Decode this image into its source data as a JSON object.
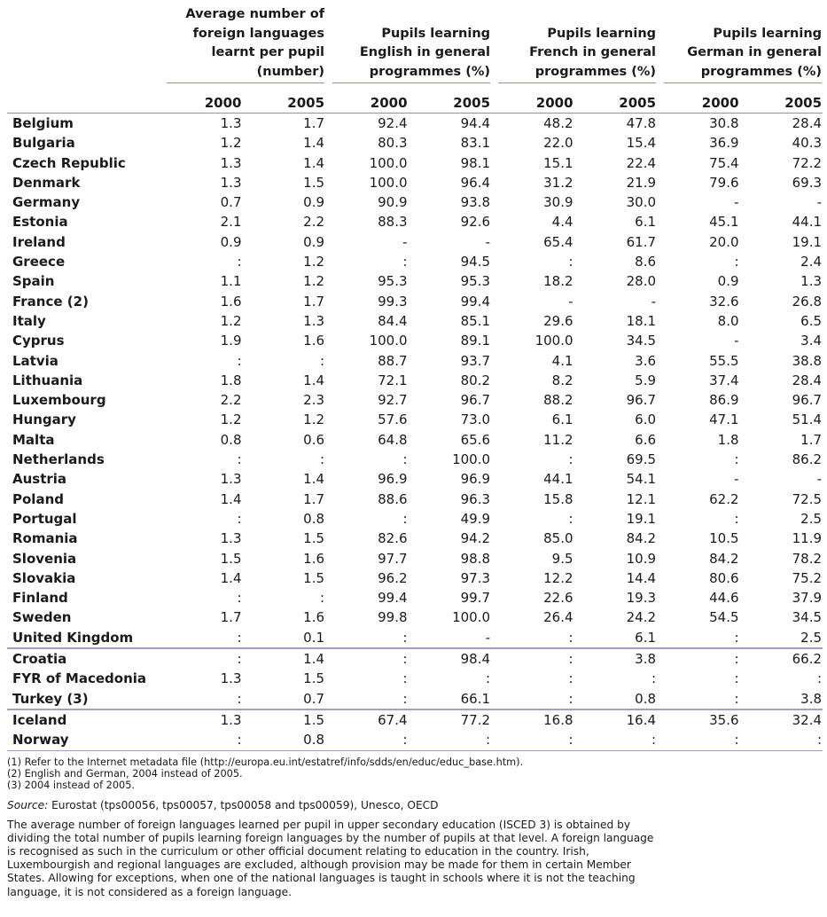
{
  "header": {
    "groups": [
      {
        "lines": [
          "Average number of",
          "foreign languages",
          "learnt per pupil",
          "(number)"
        ]
      },
      {
        "lines": [
          "Pupils learning",
          "English in general",
          "programmes (%)"
        ]
      },
      {
        "lines": [
          "Pupils learning",
          "French in  general",
          "programmes (%)"
        ]
      },
      {
        "lines": [
          "Pupils learning",
          "German in general",
          "programmes (%)"
        ]
      }
    ],
    "years": [
      "2000",
      "2005",
      "2000",
      "2005",
      "2000",
      "2005",
      "2000",
      "2005"
    ]
  },
  "rows": [
    {
      "country": "Belgium",
      "values": [
        "1.3",
        "1.7",
        "92.4",
        "94.4",
        "48.2",
        "47.8",
        "30.8",
        "28.4"
      ]
    },
    {
      "country": "Bulgaria",
      "values": [
        "1.2",
        "1.4",
        "80.3",
        "83.1",
        "22.0",
        "15.4",
        "36.9",
        "40.3"
      ]
    },
    {
      "country": "Czech Republic",
      "values": [
        "1.3",
        "1.4",
        "100.0",
        "98.1",
        "15.1",
        "22.4",
        "75.4",
        "72.2"
      ]
    },
    {
      "country": "Denmark",
      "values": [
        "1.3",
        "1.5",
        "100.0",
        "96.4",
        "31.2",
        "21.9",
        "79.6",
        "69.3"
      ]
    },
    {
      "country": "Germany",
      "values": [
        "0.7",
        "0.9",
        "90.9",
        "93.8",
        "30.9",
        "30.0",
        "-",
        "-"
      ]
    },
    {
      "country": "Estonia",
      "values": [
        "2.1",
        "2.2",
        "88.3",
        "92.6",
        "4.4",
        "6.1",
        "45.1",
        "44.1"
      ]
    },
    {
      "country": "Ireland",
      "values": [
        "0.9",
        "0.9",
        "-",
        "-",
        "65.4",
        "61.7",
        "20.0",
        "19.1"
      ]
    },
    {
      "country": "Greece",
      "values": [
        ":",
        "1.2",
        ":",
        "94.5",
        ":",
        "8.6",
        ":",
        "2.4"
      ]
    },
    {
      "country": "Spain",
      "values": [
        "1.1",
        "1.2",
        "95.3",
        "95.3",
        "18.2",
        "28.0",
        "0.9",
        "1.3"
      ]
    },
    {
      "country": "France (2)",
      "values": [
        "1.6",
        "1.7",
        "99.3",
        "99.4",
        "-",
        "-",
        "32.6",
        "26.8"
      ]
    },
    {
      "country": "Italy",
      "values": [
        "1.2",
        "1.3",
        "84.4",
        "85.1",
        "29.6",
        "18.1",
        "8.0",
        "6.5"
      ]
    },
    {
      "country": "Cyprus",
      "values": [
        "1.9",
        "1.6",
        "100.0",
        "89.1",
        "100.0",
        "34.5",
        "-",
        "3.4"
      ]
    },
    {
      "country": "Latvia",
      "values": [
        ":",
        ":",
        "88.7",
        "93.7",
        "4.1",
        "3.6",
        "55.5",
        "38.8"
      ]
    },
    {
      "country": "Lithuania",
      "values": [
        "1.8",
        "1.4",
        "72.1",
        "80.2",
        "8.2",
        "5.9",
        "37.4",
        "28.4"
      ]
    },
    {
      "country": "Luxembourg",
      "values": [
        "2.2",
        "2.3",
        "92.7",
        "96.7",
        "88.2",
        "96.7",
        "86.9",
        "96.7"
      ]
    },
    {
      "country": "Hungary",
      "values": [
        "1.2",
        "1.2",
        "57.6",
        "73.0",
        "6.1",
        "6.0",
        "47.1",
        "51.4"
      ]
    },
    {
      "country": "Malta",
      "values": [
        "0.8",
        "0.6",
        "64.8",
        "65.6",
        "11.2",
        "6.6",
        "1.8",
        "1.7"
      ]
    },
    {
      "country": "Netherlands",
      "values": [
        ":",
        ":",
        ":",
        "100.0",
        ":",
        "69.5",
        ":",
        "86.2"
      ]
    },
    {
      "country": "Austria",
      "values": [
        "1.3",
        "1.4",
        "96.9",
        "96.9",
        "44.1",
        "54.1",
        "-",
        "-"
      ]
    },
    {
      "country": "Poland",
      "values": [
        "1.4",
        "1.7",
        "88.6",
        "96.3",
        "15.8",
        "12.1",
        "62.2",
        "72.5"
      ]
    },
    {
      "country": "Portugal",
      "values": [
        ":",
        "0.8",
        ":",
        "49.9",
        ":",
        "19.1",
        ":",
        "2.5"
      ]
    },
    {
      "country": "Romania",
      "values": [
        "1.3",
        "1.5",
        "82.6",
        "94.2",
        "85.0",
        "84.2",
        "10.5",
        "11.9"
      ]
    },
    {
      "country": "Slovenia",
      "values": [
        "1.5",
        "1.6",
        "97.7",
        "98.8",
        "9.5",
        "10.9",
        "84.2",
        "78.2"
      ]
    },
    {
      "country": "Slovakia",
      "values": [
        "1.4",
        "1.5",
        "96.2",
        "97.3",
        "12.2",
        "14.4",
        "80.6",
        "75.2"
      ]
    },
    {
      "country": "Finland",
      "values": [
        ":",
        ":",
        "99.4",
        "99.7",
        "22.6",
        "19.3",
        "44.6",
        "37.9"
      ]
    },
    {
      "country": "Sweden",
      "values": [
        "1.7",
        "1.6",
        "99.8",
        "100.0",
        "26.4",
        "24.2",
        "54.5",
        "34.5"
      ]
    },
    {
      "country": "United Kingdom",
      "values": [
        ":",
        "0.1",
        ":",
        "-",
        ":",
        "6.1",
        ":",
        "2.5"
      ]
    },
    {
      "country": "Croatia",
      "values": [
        ":",
        "1.4",
        ":",
        "98.4",
        ":",
        "3.8",
        ":",
        "66.2"
      ],
      "sep": true
    },
    {
      "country": "FYR of Macedonia",
      "values": [
        "1.3",
        "1.5",
        ":",
        ":",
        ":",
        ":",
        ":",
        ":"
      ]
    },
    {
      "country": "Turkey (3)",
      "values": [
        ":",
        "0.7",
        ":",
        "66.1",
        ":",
        "0.8",
        ":",
        "3.8"
      ]
    },
    {
      "country": "Iceland",
      "values": [
        "1.3",
        "1.5",
        "67.4",
        "77.2",
        "16.8",
        "16.4",
        "35.6",
        "32.4"
      ],
      "sep": true
    },
    {
      "country": "Norway",
      "values": [
        ":",
        "0.8",
        ":",
        ":",
        ":",
        ":",
        ":",
        ":"
      ],
      "last": true
    }
  ],
  "footnotes": [
    "(1)  Refer to the Internet metadata file (http://europa.eu.int/estatref/info/sdds/en/educ/educ_base.htm).",
    "(2)  English and German, 2004 instead of 2005.",
    "(3)  2004 instead of 2005."
  ],
  "source": {
    "label": "Source:",
    "text": " Eurostat (tps00056, tps00057, tps00058 and tps00059), Unesco, OECD"
  },
  "description": "The average number of foreign languages learned per pupil in upper secondary education (ISCED 3) is obtained by dividing the total number of pupils learning foreign languages by the number of pupils at that level. A foreign language is recognised as such in the curriculum or other official document relating to education in the country. Irish, Luxembourgish and regional languages are excluded, although provision may be made for them in certain Member States. Allowing for exceptions, when one of the national languages is taught in schools where it is not the teaching language, it is not considered as a foreign language."
}
